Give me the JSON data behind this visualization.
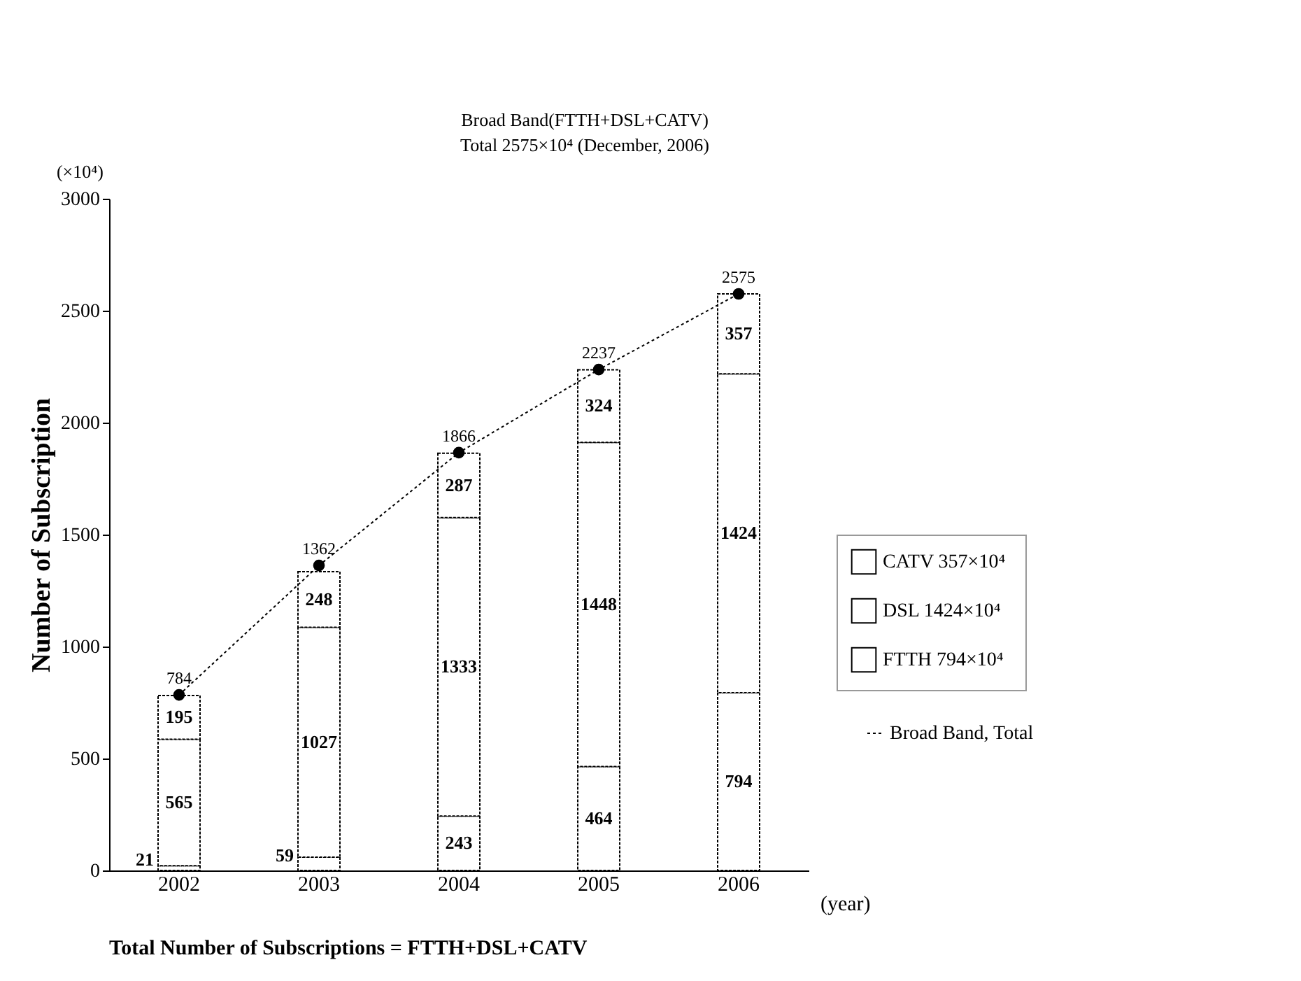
{
  "chart_data": {
    "type": "bar",
    "stacked": true,
    "ylabel": "Number of Subscription",
    "xlabel": "(year)",
    "categories": [
      "2002",
      "2003",
      "2004",
      "2005",
      "2006"
    ],
    "series": [
      {
        "name": "FTTH  794×10⁴",
        "color": "#ffffff",
        "values": [
          21,
          59,
          243,
          464,
          794
        ]
      },
      {
        "name": "DSL  1424×10⁴",
        "color": "#ffffff",
        "values": [
          565,
          1027,
          1333,
          1448,
          1424
        ]
      },
      {
        "name": "CATV  357×10⁴",
        "color": "#ffffff",
        "values": [
          195,
          248,
          287,
          324,
          357
        ]
      },
      {
        "name": "Broad Band, Total",
        "type": "line",
        "color": "#000000",
        "values": [
          784,
          1362,
          1866,
          2237,
          2575
        ]
      }
    ],
    "ylim": [
      0,
      3000
    ],
    "yticks": [
      0,
      500,
      1000,
      1500,
      2000,
      2500,
      3000
    ],
    "grid": false,
    "legend": "right",
    "marker": "circle",
    "line_style": "dotted",
    "data_labels": true,
    "annotations": [
      "(×10⁴)",
      "Broad Band(FTTH+DSL+CATV)\nTotal  2575×10⁴ (December, 2006)",
      "Total Number of Subscriptions = FTTH+DSL+CATV"
    ]
  }
}
